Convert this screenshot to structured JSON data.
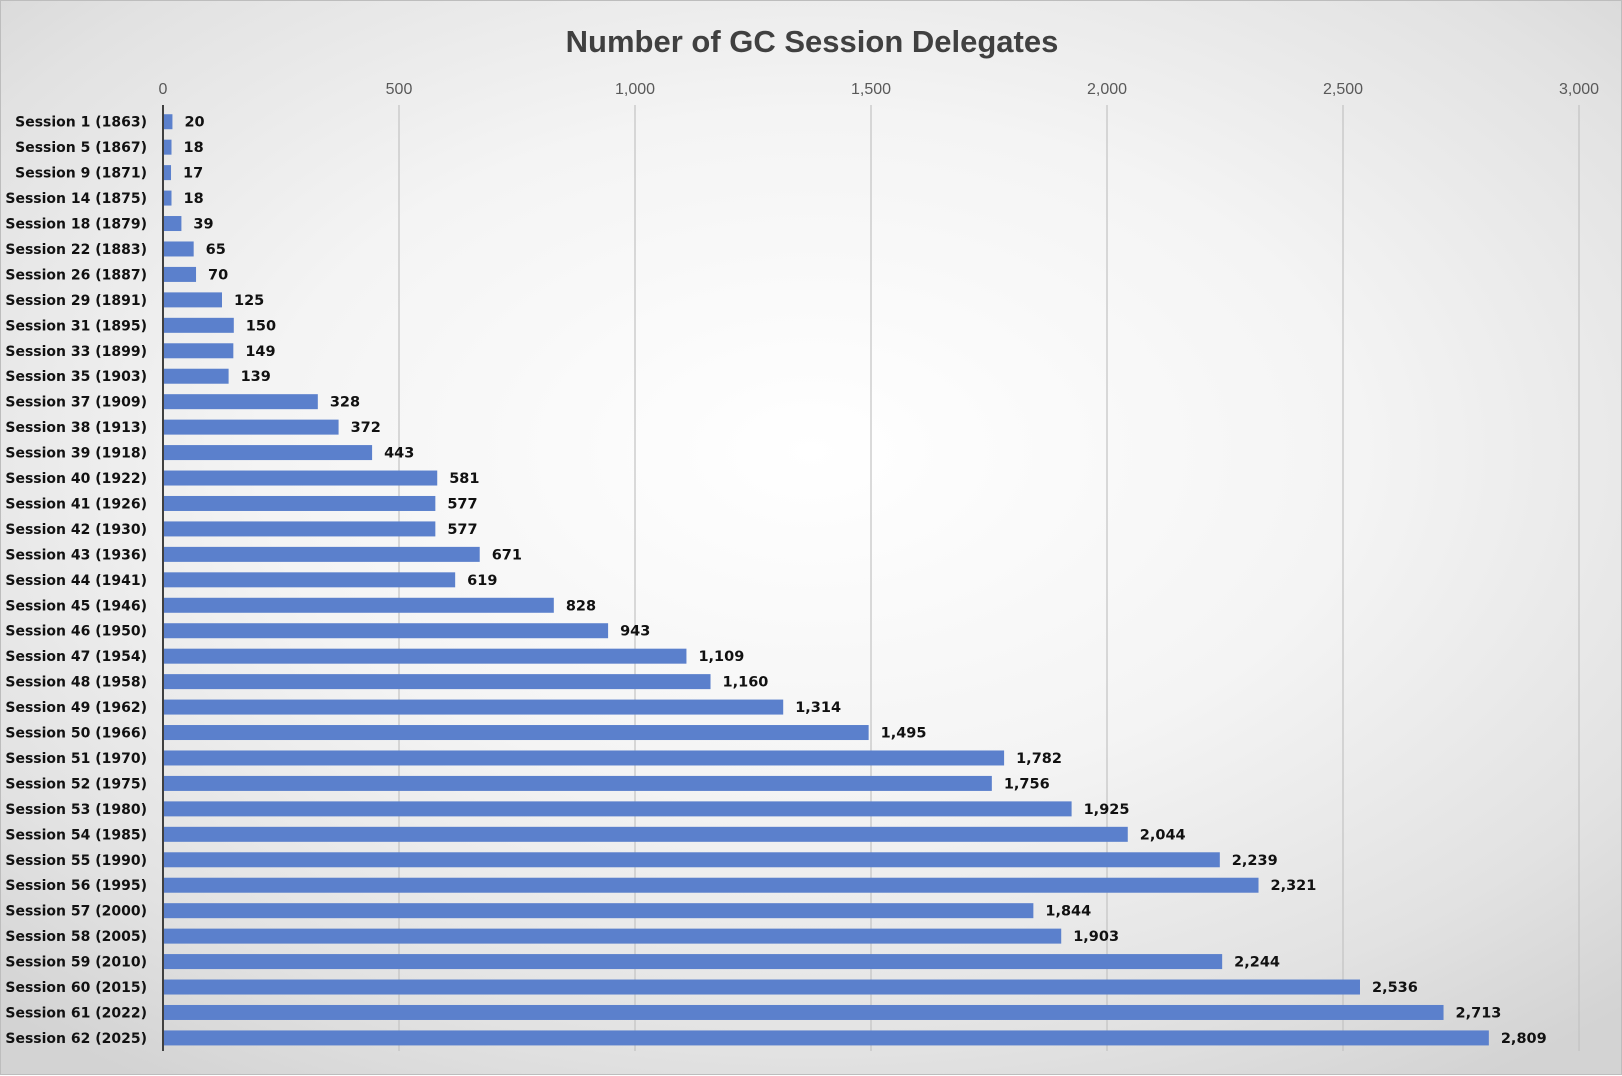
{
  "chart_data": {
    "type": "bar",
    "orientation": "horizontal",
    "title": "Number of GC Session Delegates",
    "xlabel": "",
    "ylabel": "",
    "xlim": [
      0,
      3000
    ],
    "x_ticks": [
      "0",
      "500",
      "1,000",
      "1,500",
      "2,000",
      "2,500",
      "3,000"
    ],
    "x_axis_position": "top",
    "grid": true,
    "legend": "none",
    "bar_color": "#5B80CC",
    "categories": [
      "Session 1 (1863)",
      "Session 5 (1867)",
      "Session 9 (1871)",
      "Session 14 (1875)",
      "Session 18 (1879)",
      "Session 22 (1883)",
      "Session 26 (1887)",
      "Session 29 (1891)",
      "Session 31 (1895)",
      "Session 33 (1899)",
      "Session 35 (1903)",
      "Session 37 (1909)",
      "Session 38 (1913)",
      "Session 39 (1918)",
      "Session 40 (1922)",
      "Session 41 (1926)",
      "Session 42 (1930)",
      "Session 43 (1936)",
      "Session 44 (1941)",
      "Session 45 (1946)",
      "Session 46 (1950)",
      "Session 47 (1954)",
      "Session 48 (1958)",
      "Session 49 (1962)",
      "Session 50 (1966)",
      "Session 51 (1970)",
      "Session 52 (1975)",
      "Session 53 (1980)",
      "Session 54 (1985)",
      "Session 55 (1990)",
      "Session 56 (1995)",
      "Session 57 (2000)",
      "Session 58 (2005)",
      "Session 59 (2010)",
      "Session 60 (2015)",
      "Session 61 (2022)",
      "Session 62 (2025)"
    ],
    "values": [
      20,
      18,
      17,
      18,
      39,
      65,
      70,
      125,
      150,
      149,
      139,
      328,
      372,
      443,
      581,
      577,
      577,
      671,
      619,
      828,
      943,
      1109,
      1160,
      1314,
      1495,
      1782,
      1756,
      1925,
      2044,
      2239,
      2321,
      1844,
      1903,
      2244,
      2536,
      2713,
      2809
    ],
    "value_labels": [
      "20",
      "18",
      "17",
      "18",
      "39",
      "65",
      "70",
      "125",
      "150",
      "149",
      "139",
      "328",
      "372",
      "443",
      "581",
      "577",
      "577",
      "671",
      "619",
      "828",
      "943",
      "1,109",
      "1,160",
      "1,314",
      "1,495",
      "1,782",
      "1,756",
      "1,925",
      "2,044",
      "2,239",
      "2,321",
      "1,844",
      "1,903",
      "2,244",
      "2,536",
      "2,713",
      "2,809"
    ]
  }
}
